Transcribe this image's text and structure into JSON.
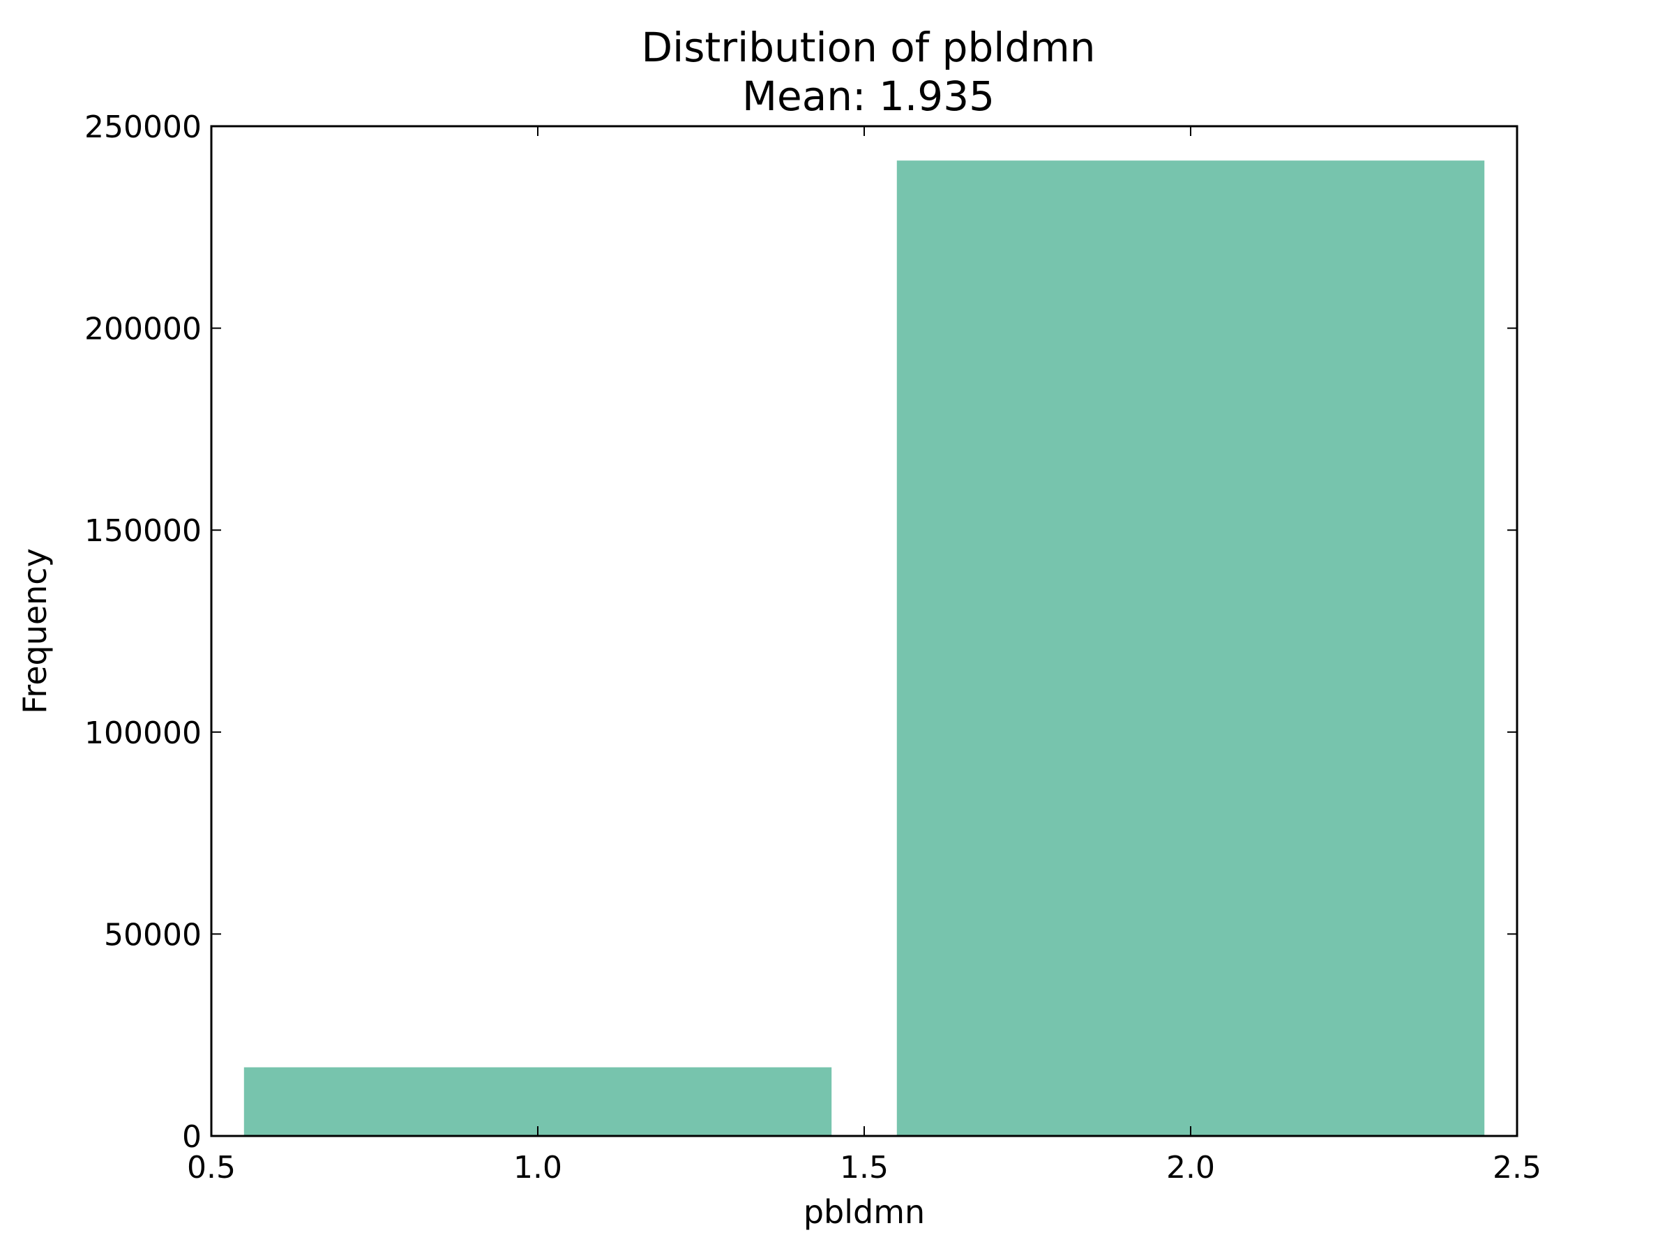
{
  "chart_data": {
    "type": "bar",
    "title": "Distribution of pbldmn",
    "subtitle": "Mean: 1.935",
    "xlabel": "pbldmn",
    "ylabel": "Frequency",
    "xlim": [
      0.5,
      2.5
    ],
    "ylim": [
      0,
      250000
    ],
    "xticks": [
      "0.5",
      "1.0",
      "1.5",
      "2.0",
      "2.5"
    ],
    "yticks": [
      "0",
      "50000",
      "100000",
      "150000",
      "200000",
      "250000"
    ],
    "grid": false,
    "bars": [
      {
        "x0": 0.55,
        "x1": 1.45,
        "value": 17000
      },
      {
        "x0": 1.55,
        "x1": 2.45,
        "value": 241500
      }
    ],
    "bar_color": "#77c4ad"
  }
}
